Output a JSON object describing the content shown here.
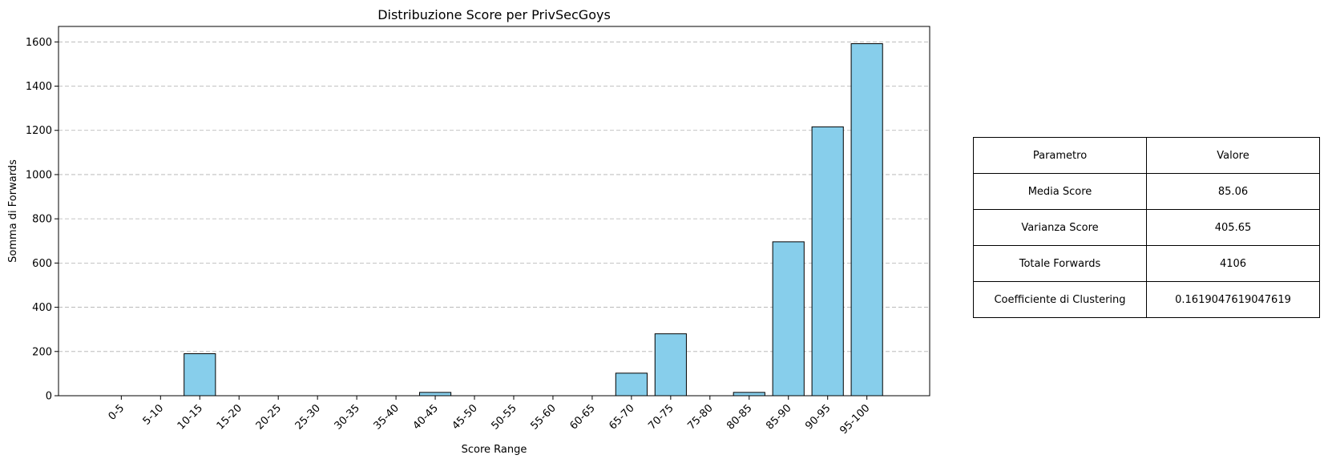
{
  "chart_data": {
    "type": "bar",
    "title": "Distribuzione Score per PrivSecGoys",
    "xlabel": "Score Range",
    "ylabel": "Somma di Forwards",
    "categories": [
      "0-5",
      "5-10",
      "10-15",
      "15-20",
      "20-25",
      "25-30",
      "30-35",
      "35-40",
      "40-45",
      "45-50",
      "50-55",
      "55-60",
      "60-65",
      "65-70",
      "70-75",
      "75-80",
      "80-85",
      "85-90",
      "90-95",
      "95-100"
    ],
    "values": [
      0,
      0,
      190,
      0,
      0,
      0,
      0,
      0,
      15,
      0,
      0,
      0,
      0,
      102,
      280,
      0,
      15,
      696,
      1216,
      1592
    ],
    "ylim": [
      0,
      1670
    ],
    "yticks": [
      0,
      200,
      400,
      600,
      800,
      1000,
      1200,
      1400,
      1600
    ],
    "grid": "y-dashed",
    "bar_color": "#87CEEB",
    "edge_color": "#000000"
  },
  "table": {
    "header": [
      "Parametro",
      "Valore"
    ],
    "rows": [
      [
        "Media Score",
        "85.06"
      ],
      [
        "Varianza Score",
        "405.65"
      ],
      [
        "Totale Forwards",
        "4106"
      ],
      [
        "Coefficiente di Clustering",
        "0.1619047619047619"
      ]
    ]
  }
}
